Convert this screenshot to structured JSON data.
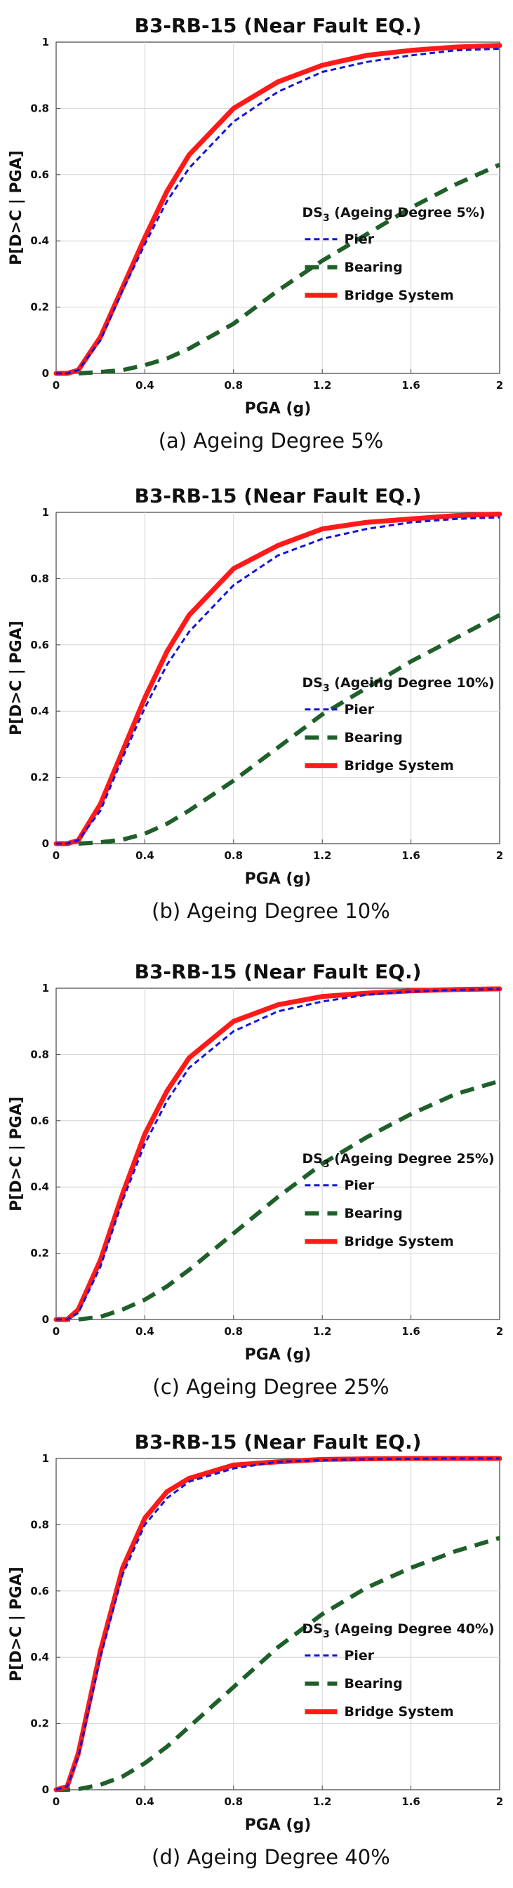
{
  "chart_data": [
    {
      "type": "line",
      "title": "B3-RB-15 (Near Fault EQ.)",
      "caption": "(a) Ageing Degree 5%",
      "xlabel": "PGA (g)",
      "ylabel": "P[D>C | PGA]",
      "xlim": [
        0,
        2
      ],
      "ylim": [
        0,
        1
      ],
      "xticks": [
        "0",
        "0.4",
        "0.8",
        "1.2",
        "1.6",
        "2"
      ],
      "yticks": [
        "0",
        "0.2",
        "0.4",
        "0.6",
        "0.8",
        "1"
      ],
      "grid": true,
      "legend": {
        "position": "right",
        "title_main": "DS",
        "title_sub": "3",
        "title_rest": " (Ageing Degree 5%)"
      },
      "x": [
        0,
        0.05,
        0.1,
        0.2,
        0.3,
        0.4,
        0.5,
        0.6,
        0.8,
        1.0,
        1.2,
        1.4,
        1.6,
        1.8,
        2.0
      ],
      "series": [
        {
          "name": "Pier",
          "color": "#1515d8",
          "style": "dotted",
          "values": [
            0,
            0.0,
            0.01,
            0.1,
            0.25,
            0.39,
            0.52,
            0.62,
            0.76,
            0.85,
            0.91,
            0.94,
            0.96,
            0.975,
            0.98
          ]
        },
        {
          "name": "Bearing",
          "color": "#1f5f2a",
          "style": "dashed",
          "values": [
            0,
            0.0,
            0.0,
            0.004,
            0.01,
            0.025,
            0.045,
            0.075,
            0.15,
            0.25,
            0.34,
            0.42,
            0.5,
            0.57,
            0.63
          ]
        },
        {
          "name": "Bridge System",
          "color": "#ff1a1a",
          "style": "solid",
          "values": [
            0,
            0.0,
            0.01,
            0.11,
            0.26,
            0.41,
            0.55,
            0.66,
            0.8,
            0.88,
            0.93,
            0.96,
            0.975,
            0.985,
            0.99
          ]
        }
      ]
    },
    {
      "type": "line",
      "title": "B3-RB-15 (Near Fault EQ.)",
      "caption": "(b) Ageing Degree 10%",
      "xlabel": "PGA (g)",
      "ylabel": "P[D>C | PGA]",
      "xlim": [
        0,
        2
      ],
      "ylim": [
        0,
        1
      ],
      "xticks": [
        "0",
        "0.4",
        "0.8",
        "1.2",
        "1.6",
        "2"
      ],
      "yticks": [
        "0",
        "0.2",
        "0.4",
        "0.6",
        "0.8",
        "1"
      ],
      "grid": true,
      "legend": {
        "position": "right",
        "title_main": "DS",
        "title_sub": "3",
        "title_rest": " (Ageing Degree 10%)"
      },
      "x": [
        0,
        0.05,
        0.1,
        0.2,
        0.3,
        0.4,
        0.5,
        0.6,
        0.8,
        1.0,
        1.2,
        1.4,
        1.6,
        1.8,
        2.0
      ],
      "series": [
        {
          "name": "Pier",
          "color": "#1515d8",
          "style": "dotted",
          "values": [
            0,
            0.0,
            0.01,
            0.1,
            0.26,
            0.41,
            0.54,
            0.64,
            0.78,
            0.87,
            0.92,
            0.95,
            0.97,
            0.98,
            0.985
          ]
        },
        {
          "name": "Bearing",
          "color": "#1f5f2a",
          "style": "dashed",
          "values": [
            0,
            0.0,
            0.0,
            0.004,
            0.012,
            0.03,
            0.06,
            0.1,
            0.19,
            0.29,
            0.39,
            0.47,
            0.55,
            0.62,
            0.69
          ]
        },
        {
          "name": "Bridge System",
          "color": "#ff1a1a",
          "style": "solid",
          "values": [
            0,
            0.0,
            0.01,
            0.12,
            0.28,
            0.44,
            0.58,
            0.69,
            0.83,
            0.9,
            0.95,
            0.97,
            0.98,
            0.99,
            0.995
          ]
        }
      ]
    },
    {
      "type": "line",
      "title": "B3-RB-15 (Near Fault EQ.)",
      "caption": "(c) Ageing Degree 25%",
      "xlabel": "PGA (g)",
      "ylabel": "P[D>C | PGA]",
      "xlim": [
        0,
        2
      ],
      "ylim": [
        0,
        1
      ],
      "xticks": [
        "0",
        "0.4",
        "0.8",
        "1.2",
        "1.6",
        "2"
      ],
      "yticks": [
        "0",
        "0.2",
        "0.4",
        "0.6",
        "0.8",
        "1"
      ],
      "grid": true,
      "legend": {
        "position": "right",
        "title_main": "DS",
        "title_sub": "3",
        "title_rest": " (Ageing Degree 25%)"
      },
      "x": [
        0,
        0.05,
        0.1,
        0.2,
        0.3,
        0.4,
        0.5,
        0.6,
        0.8,
        1.0,
        1.2,
        1.4,
        1.6,
        1.8,
        2.0
      ],
      "series": [
        {
          "name": "Pier",
          "color": "#1515d8",
          "style": "dotted",
          "values": [
            0,
            0.0,
            0.02,
            0.16,
            0.36,
            0.53,
            0.66,
            0.76,
            0.87,
            0.93,
            0.96,
            0.98,
            0.99,
            0.995,
            0.997
          ]
        },
        {
          "name": "Bearing",
          "color": "#1f5f2a",
          "style": "dashed",
          "values": [
            0,
            0.0,
            0.0,
            0.008,
            0.03,
            0.06,
            0.1,
            0.15,
            0.26,
            0.37,
            0.47,
            0.55,
            0.62,
            0.68,
            0.72
          ]
        },
        {
          "name": "Bridge System",
          "color": "#ff1a1a",
          "style": "solid",
          "values": [
            0,
            0.0,
            0.03,
            0.18,
            0.38,
            0.56,
            0.69,
            0.79,
            0.9,
            0.95,
            0.975,
            0.985,
            0.992,
            0.996,
            0.998
          ]
        }
      ]
    },
    {
      "type": "line",
      "title": "B3-RB-15 (Near Fault EQ.)",
      "caption": "(d) Ageing Degree 40%",
      "xlabel": "PGA (g)",
      "ylabel": "P[D>C | PGA]",
      "xlim": [
        0,
        2
      ],
      "ylim": [
        0,
        1
      ],
      "xticks": [
        "0",
        "0.4",
        "0.8",
        "1.2",
        "1.6",
        "2"
      ],
      "yticks": [
        "0",
        "0.2",
        "0.4",
        "0.6",
        "0.8",
        "1"
      ],
      "grid": true,
      "legend": {
        "position": "right",
        "title_main": "DS",
        "title_sub": "3",
        "title_rest": " (Ageing Degree 40%)"
      },
      "x": [
        0,
        0.05,
        0.1,
        0.2,
        0.3,
        0.4,
        0.5,
        0.6,
        0.8,
        1.0,
        1.2,
        1.4,
        1.6,
        1.8,
        2.0
      ],
      "series": [
        {
          "name": "Pier",
          "color": "#1515d8",
          "style": "dotted",
          "values": [
            0,
            0.01,
            0.1,
            0.4,
            0.65,
            0.8,
            0.88,
            0.93,
            0.97,
            0.99,
            0.995,
            0.998,
            0.999,
            1.0,
            1.0
          ]
        },
        {
          "name": "Bearing",
          "color": "#1f5f2a",
          "style": "dashed",
          "values": [
            0,
            0.0,
            0.002,
            0.015,
            0.04,
            0.08,
            0.13,
            0.19,
            0.31,
            0.43,
            0.53,
            0.61,
            0.67,
            0.72,
            0.76
          ]
        },
        {
          "name": "Bridge System",
          "color": "#ff1a1a",
          "style": "solid",
          "values": [
            0,
            0.01,
            0.11,
            0.42,
            0.67,
            0.82,
            0.9,
            0.94,
            0.98,
            0.99,
            0.997,
            0.999,
            1.0,
            1.0,
            1.0
          ]
        }
      ]
    }
  ]
}
